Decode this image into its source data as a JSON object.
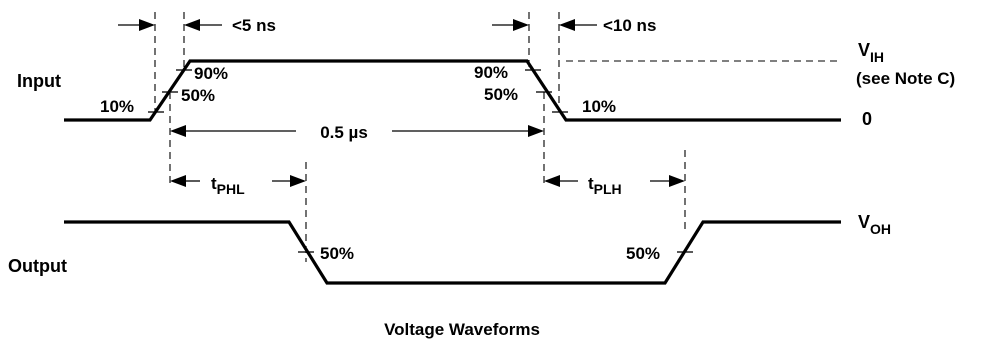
{
  "signals": {
    "input": "Input",
    "output": "Output"
  },
  "levels": {
    "vih_main": "V",
    "vih_sub": "IH",
    "vih_note": "(see Note C)",
    "zero": "0",
    "voh_main": "V",
    "voh_sub": "OH"
  },
  "percent_marks": {
    "input_rise_10": "10%",
    "input_rise_50": "50%",
    "input_rise_90": "90%",
    "input_fall_90": "90%",
    "input_fall_50": "50%",
    "input_fall_10": "10%",
    "output_fall_50": "50%",
    "output_rise_50": "50%"
  },
  "timings": {
    "rise_time": "<5 ns",
    "fall_time": "<10 ns",
    "pulse_width": "0.5 µs",
    "tphl_main": "t",
    "tphl_sub": "PHL",
    "tplh_main": "t",
    "tplh_sub": "PLH"
  },
  "caption": "Voltage Waveforms"
}
